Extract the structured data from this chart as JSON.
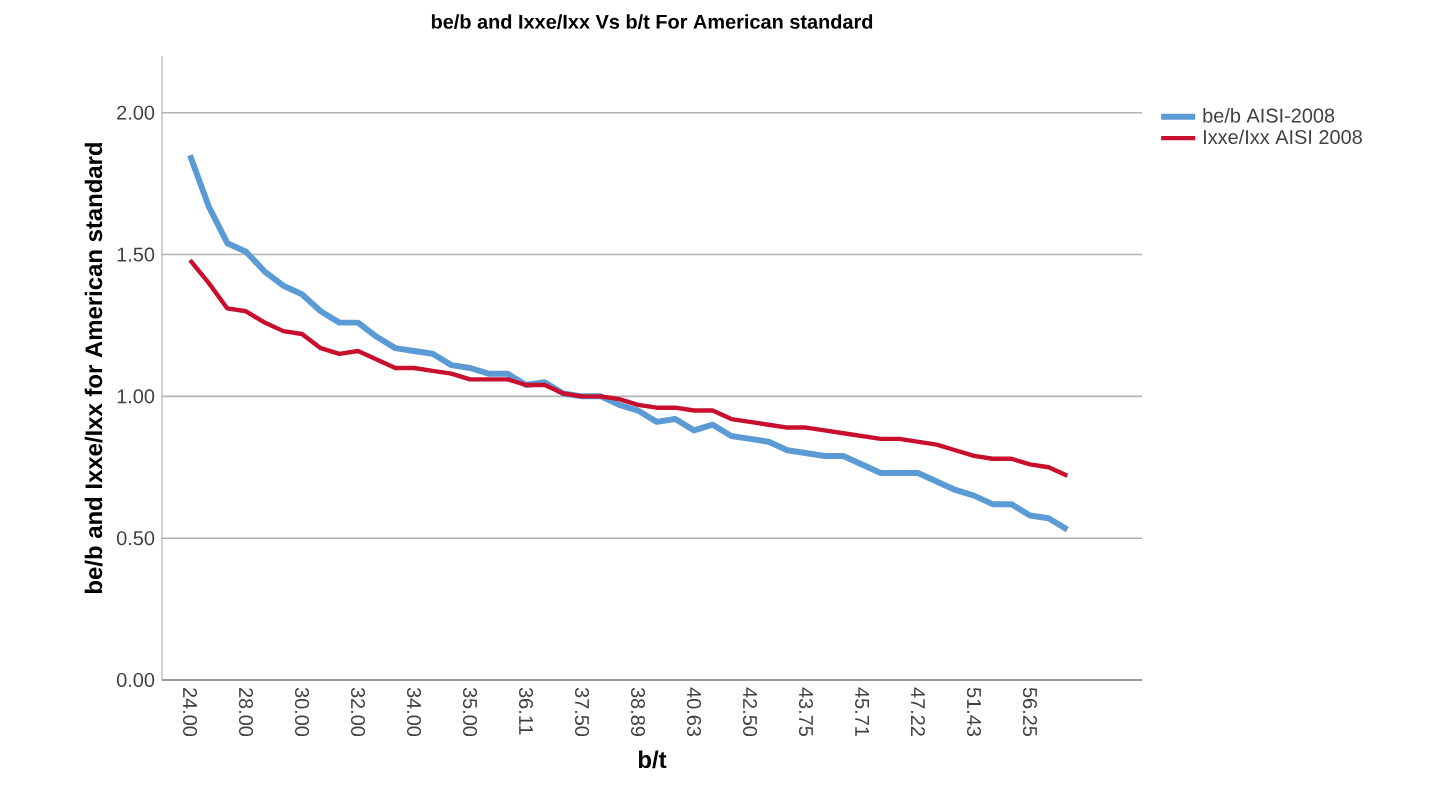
{
  "chart_data": {
    "type": "line",
    "title": "be/b and Ixxe/Ixx Vs b/t For American standard",
    "xlabel": "b/t",
    "ylabel": "be/b and Ixxe/Ixx for American standard",
    "categories": [
      "24.00",
      null,
      null,
      "28.00",
      null,
      null,
      "30.00",
      null,
      null,
      "32.00",
      null,
      null,
      "34.00",
      null,
      null,
      "35.00",
      null,
      null,
      "36.11",
      null,
      null,
      "37.50",
      null,
      null,
      "38.89",
      null,
      null,
      "40.63",
      null,
      null,
      "42.50",
      null,
      null,
      "43.75",
      null,
      null,
      "45.71",
      null,
      null,
      "47.22",
      null,
      null,
      "51.43",
      null,
      null,
      "56.25",
      null,
      null
    ],
    "series": [
      {
        "name": "be/b AISI-2008",
        "color": "#5b9bd5",
        "values": [
          1.85,
          1.67,
          1.54,
          1.51,
          1.44,
          1.39,
          1.36,
          1.3,
          1.26,
          1.26,
          1.21,
          1.17,
          1.16,
          1.15,
          1.11,
          1.1,
          1.08,
          1.08,
          1.04,
          1.05,
          1.01,
          1.0,
          1.0,
          0.97,
          0.95,
          0.91,
          0.92,
          0.88,
          0.9,
          0.86,
          0.85,
          0.84,
          0.81,
          0.8,
          0.79,
          0.79,
          0.76,
          0.73,
          0.73,
          0.73,
          0.7,
          0.67,
          0.65,
          0.62,
          0.62,
          0.58,
          0.57,
          0.53
        ]
      },
      {
        "name": "Ixxe/Ixx AISI 2008",
        "color": "#c8102e",
        "values": [
          1.48,
          1.4,
          1.31,
          1.3,
          1.26,
          1.23,
          1.22,
          1.17,
          1.15,
          1.16,
          1.13,
          1.1,
          1.1,
          1.09,
          1.08,
          1.06,
          1.06,
          1.06,
          1.04,
          1.04,
          1.01,
          1.0,
          1.0,
          0.99,
          0.97,
          0.96,
          0.96,
          0.95,
          0.95,
          0.92,
          0.91,
          0.9,
          0.89,
          0.89,
          0.88,
          0.87,
          0.86,
          0.85,
          0.85,
          0.84,
          0.83,
          0.81,
          0.79,
          0.78,
          0.78,
          0.76,
          0.75,
          0.72
        ]
      }
    ],
    "ylim": [
      0,
      2.2
    ],
    "yticks": [
      {
        "value": 0,
        "label": "0.00"
      },
      {
        "value": 0.5,
        "label": "0.50"
      },
      {
        "value": 1,
        "label": "1.00"
      },
      {
        "value": 1.5,
        "label": "1.50"
      },
      {
        "value": 2,
        "label": "2.00"
      }
    ],
    "grid": "y",
    "legend": "right"
  }
}
